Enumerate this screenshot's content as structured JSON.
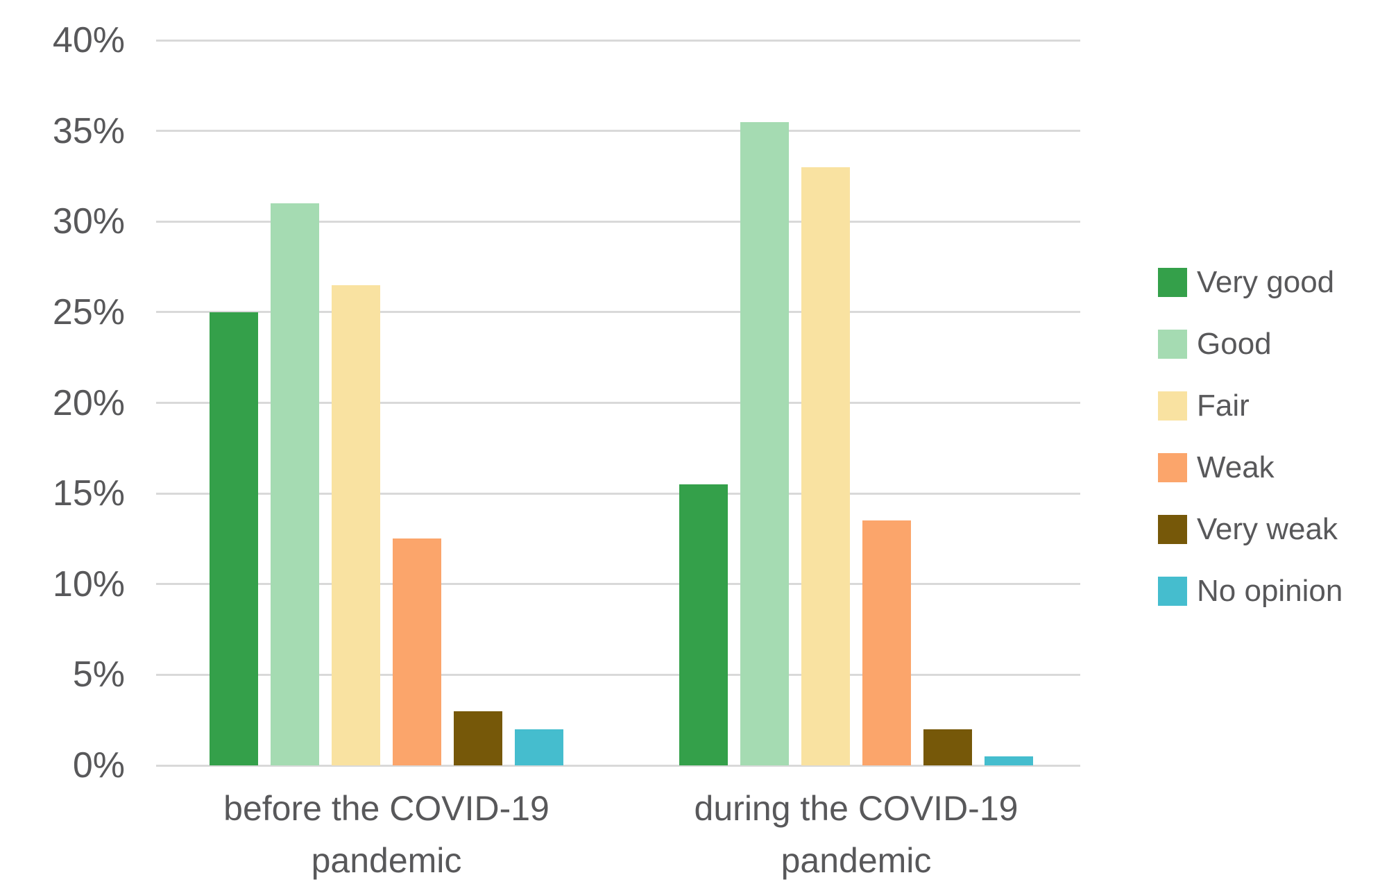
{
  "chart_data": {
    "type": "bar",
    "categories": [
      "before the COVID-19\npandemic",
      "during the COVID-19\npandemic"
    ],
    "series": [
      {
        "name": "Very good",
        "color": "#34a04a",
        "values": [
          25,
          15.5
        ]
      },
      {
        "name": "Good",
        "color": "#a5dbb2",
        "values": [
          31,
          35.5
        ]
      },
      {
        "name": "Fair",
        "color": "#f9e2a1",
        "values": [
          26.5,
          33
        ]
      },
      {
        "name": "Weak",
        "color": "#fba56b",
        "values": [
          12.5,
          13.5
        ]
      },
      {
        "name": "Very weak",
        "color": "#765809",
        "values": [
          3,
          2
        ]
      },
      {
        "name": "No opinion",
        "color": "#45bdce",
        "values": [
          2,
          0.5
        ]
      }
    ],
    "ylim": [
      0,
      40
    ],
    "ytick_step": 5,
    "ytick_labels": [
      "0%",
      "5%",
      "10%",
      "15%",
      "20%",
      "25%",
      "30%",
      "35%",
      "40%"
    ],
    "grid": true,
    "legend_position": "right"
  },
  "colors": {
    "gridline": "#d9d9d9",
    "axis_text": "#58585a",
    "background": "#ffffff"
  }
}
